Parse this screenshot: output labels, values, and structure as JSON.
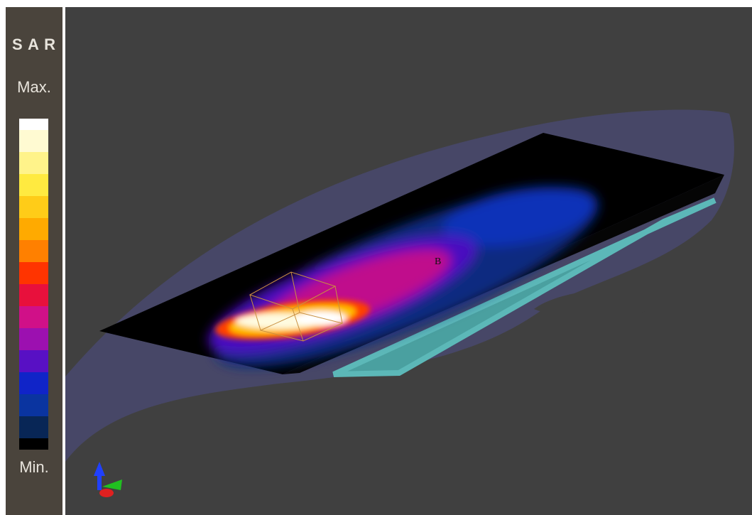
{
  "sidebar": {
    "title": "S A R",
    "max_label": "Max.",
    "min_label": "Min."
  },
  "scene": {
    "marker_label": "B"
  }
}
